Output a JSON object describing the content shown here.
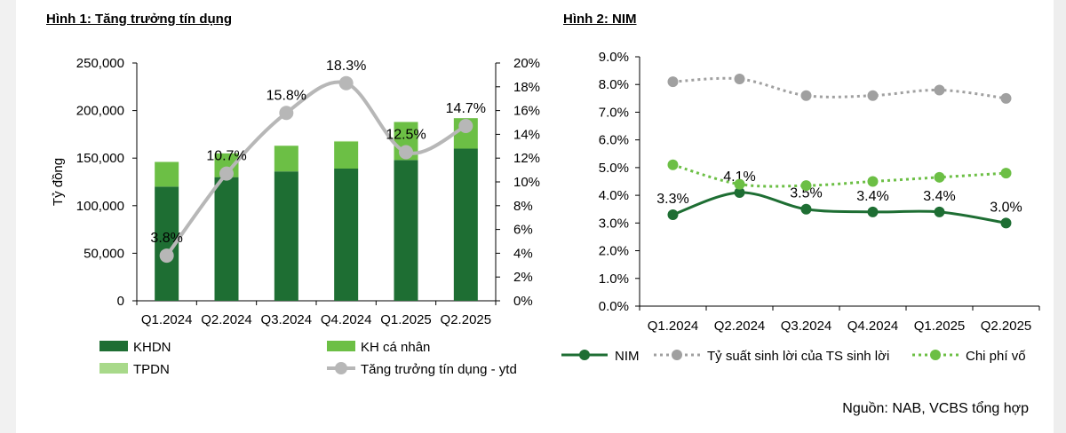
{
  "figure1": {
    "title": "Hình 1: Tăng trưởng tín dụng",
    "chart_data": {
      "type": "bar",
      "stacked": true,
      "categories": [
        "Q1.2024",
        "Q2.2024",
        "Q3.2024",
        "Q4.2024",
        "Q1.2025",
        "Q2.2025"
      ],
      "ylabel": "Tỷ đồng",
      "ylim": [
        0,
        250000
      ],
      "yticks": [
        "250,000",
        "200,000",
        "150,000",
        "100,000",
        "50,000",
        "0"
      ],
      "y2lim": [
        0,
        20
      ],
      "y2ticks": [
        "20%",
        "18%",
        "16%",
        "14%",
        "12%",
        "10%",
        "8%",
        "6%",
        "4%",
        "2%",
        "0%"
      ],
      "series": [
        {
          "name": "KHDN",
          "type": "bar",
          "color": "#1e6e33",
          "values": [
            120000,
            130000,
            136000,
            139000,
            148000,
            160000
          ]
        },
        {
          "name": "KH cá nhân",
          "type": "bar",
          "color": "#6cbf45",
          "values": [
            26000,
            25000,
            27000,
            28000,
            40000,
            32000
          ]
        },
        {
          "name": "TPDN",
          "type": "bar",
          "color": "#a8d98a",
          "values": [
            0,
            0,
            0,
            1000,
            0,
            0
          ]
        },
        {
          "name": "Tăng trưởng tín dụng - ytd",
          "type": "line",
          "axis": "right",
          "color": "#b7b7b7",
          "values": [
            3.8,
            10.7,
            15.8,
            18.3,
            12.5,
            14.7
          ],
          "labels": [
            "3.8%",
            "10.7%",
            "15.8%",
            "18.3%",
            "12.5%",
            "14.7%"
          ]
        }
      ],
      "legend": {
        "position": "bottom",
        "items": [
          "KHDN",
          "KH cá nhân",
          "TPDN",
          "Tăng trưởng tín dụng - ytd"
        ]
      }
    }
  },
  "figure2": {
    "title": "Hình 2: NIM",
    "chart_data": {
      "type": "line",
      "categories": [
        "Q1.2024",
        "Q2.2024",
        "Q3.2024",
        "Q4.2024",
        "Q1.2025",
        "Q2.2025"
      ],
      "ylim": [
        0,
        9
      ],
      "yticks": [
        "9.0%",
        "8.0%",
        "7.0%",
        "6.0%",
        "5.0%",
        "4.0%",
        "3.0%",
        "2.0%",
        "1.0%",
        "0.0%"
      ],
      "series": [
        {
          "name": "NIM",
          "color": "#1e6e33",
          "style": "solid",
          "values": [
            3.3,
            4.1,
            3.5,
            3.4,
            3.4,
            3.0
          ],
          "labels": [
            "3.3%",
            "4.1%",
            "3.5%",
            "3.4%",
            "3.4%",
            "3.0%"
          ]
        },
        {
          "name": "Tỷ suất sinh lời của TS sinh lời",
          "color": "#a0a0a0",
          "style": "dotted",
          "values": [
            8.1,
            8.2,
            7.6,
            7.6,
            7.8,
            7.5
          ]
        },
        {
          "name": "Chi phí vốn",
          "color": "#6cbf45",
          "style": "dotted",
          "values": [
            5.1,
            4.4,
            4.35,
            4.5,
            4.65,
            4.8
          ]
        }
      ],
      "legend": {
        "position": "bottom",
        "items": [
          "NIM",
          "Tỷ suất sinh lời của TS sinh lời",
          "Chi phí vố"
        ]
      }
    }
  },
  "source": "Nguồn: NAB, VCBS tổng hợp"
}
